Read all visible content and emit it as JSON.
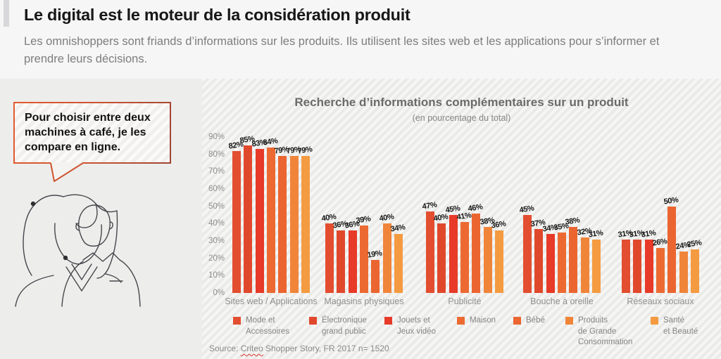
{
  "header": {
    "title": "Le digital est le moteur de la considération produit",
    "subtitle": "Les omnishoppers sont friands d’informations sur les produits. Ils utilisent les sites web et les applications pour s’informer et prendre leurs décisions."
  },
  "speech_bubble": {
    "text": "Pour choisir entre deux machines à café, je les compare en ligne."
  },
  "chart_data": {
    "type": "bar",
    "title": "Recherche d’informations complémentaires sur un produit",
    "subtitle": "(en pourcentage du total)",
    "categories": [
      "Sites web / Applications",
      "Magasins physiques",
      "Publicité",
      "Bouche à oreille",
      "Réseaux sociaux"
    ],
    "series": [
      {
        "name": "Mode et Accessoires",
        "legend_label": "Mode et\nAccessoires",
        "color": "#e24e2f",
        "values": [
          82,
          40,
          47,
          45,
          31
        ]
      },
      {
        "name": "Électronique grand public",
        "legend_label": "Électronique\ngrand public",
        "color": "#e0482c",
        "values": [
          85,
          36,
          40,
          37,
          31
        ]
      },
      {
        "name": "Jouets et Jeux vidéo",
        "legend_label": "Jouets et\nJeux vidéo",
        "color": "#e73a28",
        "values": [
          83,
          36,
          45,
          34,
          31
        ]
      },
      {
        "name": "Maison",
        "legend_label": "Maison",
        "color": "#ec6a31",
        "values": [
          84,
          39,
          41,
          35,
          26
        ]
      },
      {
        "name": "Bébé",
        "legend_label": "Bébé",
        "color": "#eb6530",
        "values": [
          79,
          19,
          46,
          38,
          50
        ]
      },
      {
        "name": "Produits de Grande Consommation",
        "legend_label": "Produits\nde Grande\nConsommation",
        "color": "#f0853a",
        "values": [
          79,
          40,
          38,
          32,
          24
        ]
      },
      {
        "name": "Santé et Beauté",
        "legend_label": "Santé\net Beauté",
        "color": "#f49b41",
        "values": [
          79,
          34,
          36,
          31,
          25
        ]
      }
    ],
    "value_suffix": "%",
    "ylim": [
      0,
      90
    ],
    "ytick_step": 10,
    "grid": false,
    "legend_position": "bottom",
    "source": {
      "prefix": "Source: ",
      "brand": "Criteo",
      "suffix": " Shopper Story, FR 2017 n= 1520"
    }
  }
}
